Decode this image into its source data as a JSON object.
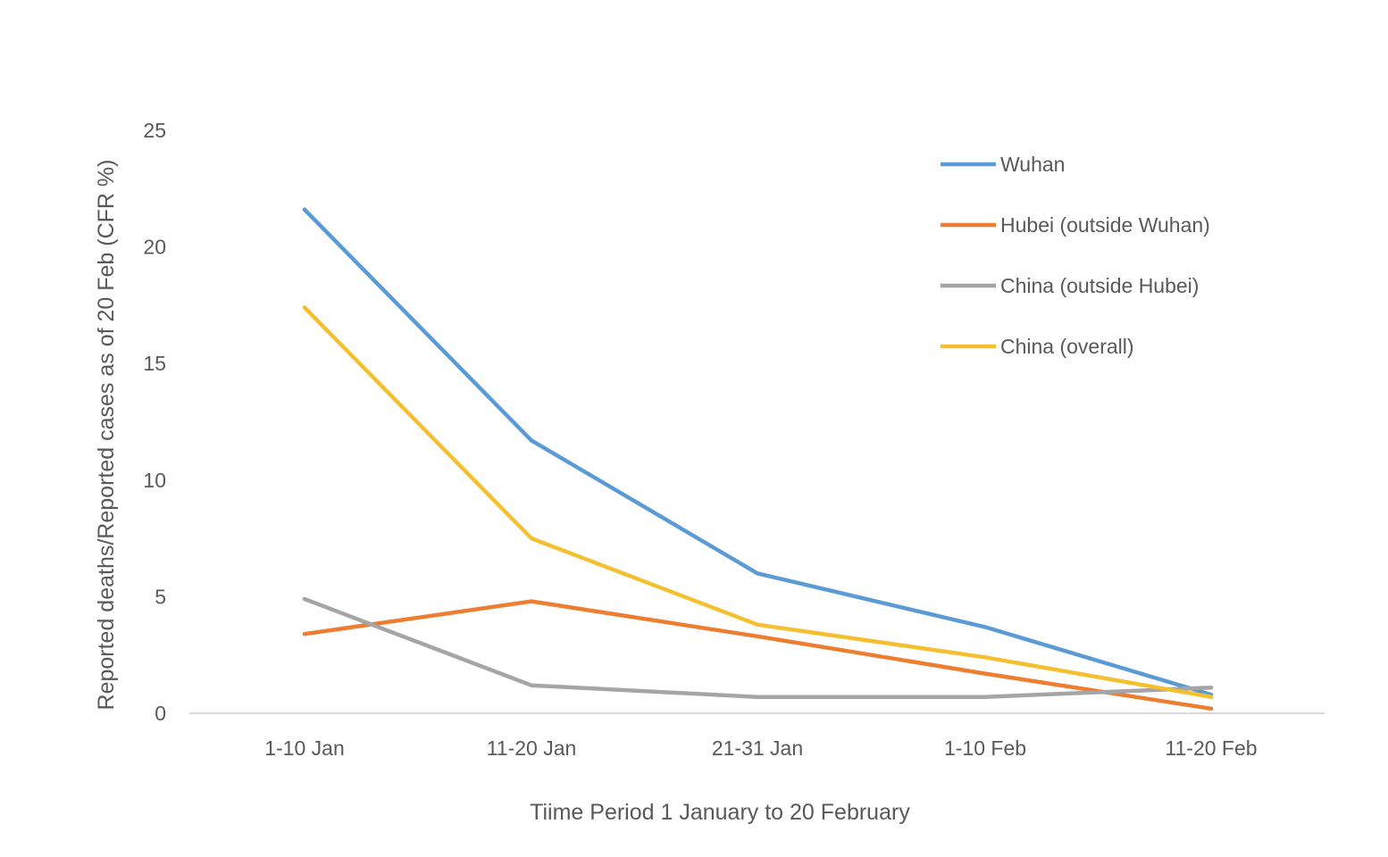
{
  "chart_data": {
    "type": "line",
    "title": "",
    "xlabel": "Tiime Period 1 January to 20 February",
    "ylabel": "Reported  deaths/Reported  cases as of 20 Feb (CFR %)",
    "categories": [
      "1-10 Jan",
      "11-20 Jan",
      "21-31 Jan",
      "1-10 Feb",
      "11-20 Feb"
    ],
    "ylim": [
      0,
      25
    ],
    "yticks": [
      0,
      5,
      10,
      15,
      20,
      25
    ],
    "grid": false,
    "legend_position": "top-right",
    "series": [
      {
        "name": "Wuhan",
        "color": "#5B9BD5",
        "values": [
          21.6,
          11.7,
          6.0,
          3.7,
          0.8
        ]
      },
      {
        "name": "Hubei (outside Wuhan)",
        "color": "#ED7D31",
        "values": [
          3.4,
          4.8,
          3.3,
          1.7,
          0.2
        ]
      },
      {
        "name": "China (outside Hubei)",
        "color": "#A5A5A5",
        "values": [
          4.9,
          1.2,
          0.7,
          0.7,
          1.1
        ]
      },
      {
        "name": "China (overall)",
        "color": "#F4C030",
        "values": [
          17.4,
          7.5,
          3.8,
          2.4,
          0.7
        ]
      }
    ]
  }
}
